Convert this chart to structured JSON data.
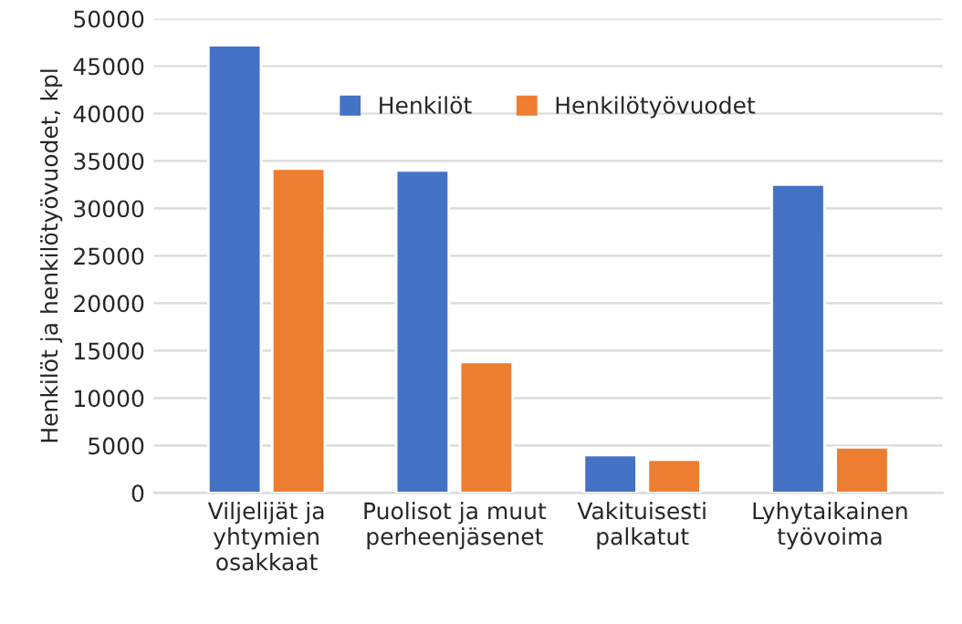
{
  "chart_data": {
    "type": "bar",
    "ylabel": "Henkilöt ja henkilötyövuodet, kpl",
    "categories": [
      "Viljelijät ja\nyhtymien\nosakkaat",
      "Puolisot ja muut\nperheenjäsenet",
      "Vakituisesti\npalkatut",
      "Lyhytaikainen\ntyövoima"
    ],
    "series": [
      {
        "name": "Henkilöt",
        "color": "#4472c4",
        "values": [
          47200,
          34000,
          4000,
          32500
        ]
      },
      {
        "name": "Henkilötyövuodet",
        "color": "#ed7d31",
        "values": [
          34200,
          13800,
          3500,
          4800
        ]
      }
    ],
    "ylim": [
      0,
      50000
    ],
    "yticks": [
      0,
      5000,
      10000,
      15000,
      20000,
      25000,
      30000,
      35000,
      40000,
      45000,
      50000
    ],
    "grid": "y",
    "legend": "top"
  }
}
